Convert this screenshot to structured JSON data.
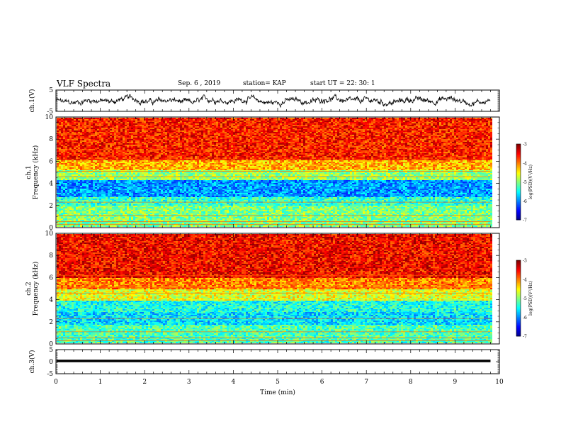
{
  "header": {
    "title": "VLF Spectra",
    "date": "Sep. 6 , 2019",
    "station": "station= KAP",
    "start": "start UT = 22: 30: 1"
  },
  "chart_data": [
    {
      "type": "line",
      "panel": "ch1-waveform",
      "ylabel": "ch.1(V)",
      "ylim": [
        -5,
        5
      ],
      "yticks": [
        "5",
        "-5"
      ],
      "xlim": [
        0,
        10
      ],
      "series_color": "#000000",
      "description_values": "noisy voltage trace fluctuating roughly between -2.5 and 2.5 V over 0-9.8 min",
      "x_end": 9.8
    },
    {
      "type": "heatmap",
      "panel": "ch1-spectrogram",
      "ylabel": "ch.1\nFrequency (kHz)",
      "ylim": [
        0,
        10
      ],
      "yticks": [
        "0",
        "2",
        "4",
        "6",
        "8",
        "10"
      ],
      "xlim": [
        0,
        10
      ],
      "x_end": 9.8,
      "colorbar": {
        "label": "log(PSD)(V²/Hz)",
        "range": [
          -7,
          -3
        ],
        "ticks": [
          "-3",
          "-4",
          "-5",
          "-6",
          "-7"
        ]
      },
      "bands_kHz": [
        {
          "from": 0,
          "to": 2.0,
          "level": -5.0
        },
        {
          "from": 2.0,
          "to": 2.8,
          "level": -5.3
        },
        {
          "from": 2.8,
          "to": 4.3,
          "level": -5.9
        },
        {
          "from": 4.3,
          "to": 5.2,
          "level": -4.9
        },
        {
          "from": 5.2,
          "to": 6.2,
          "level": -4.2
        },
        {
          "from": 6.2,
          "to": 10.0,
          "level": -3.6
        }
      ]
    },
    {
      "type": "heatmap",
      "panel": "ch2-spectrogram",
      "ylabel": "ch.2\nFrequency (kHz)",
      "ylim": [
        0,
        10
      ],
      "yticks": [
        "0",
        "2",
        "4",
        "6",
        "8",
        "10"
      ],
      "xlim": [
        0,
        10
      ],
      "x_end": 9.8,
      "colorbar": {
        "label": "log(PSD)(V²/Hz)",
        "range": [
          -7,
          -3
        ],
        "ticks": [
          "-3",
          "-4",
          "-5",
          "-6",
          "-7"
        ]
      },
      "bands_kHz": [
        {
          "from": 0,
          "to": 1.8,
          "level": -5.2
        },
        {
          "from": 1.8,
          "to": 3.0,
          "level": -5.6
        },
        {
          "from": 3.0,
          "to": 4.0,
          "level": -5.4
        },
        {
          "from": 4.0,
          "to": 5.0,
          "level": -4.6
        },
        {
          "from": 5.0,
          "to": 6.0,
          "level": -4.0
        },
        {
          "from": 6.0,
          "to": 10.0,
          "level": -3.5
        }
      ]
    },
    {
      "type": "line",
      "panel": "ch3-waveform",
      "ylabel": "ch.3(V)",
      "ylim": [
        -5,
        5
      ],
      "yticks": [
        "5",
        "0",
        "-5"
      ],
      "xlim": [
        0,
        10
      ],
      "x_end": 9.8,
      "constant_value": 0,
      "series_color": "#000000"
    }
  ],
  "x_axis": {
    "label": "Time (min)",
    "ticks": [
      "0",
      "1",
      "2",
      "3",
      "4",
      "5",
      "6",
      "7",
      "8",
      "9",
      "10"
    ]
  }
}
